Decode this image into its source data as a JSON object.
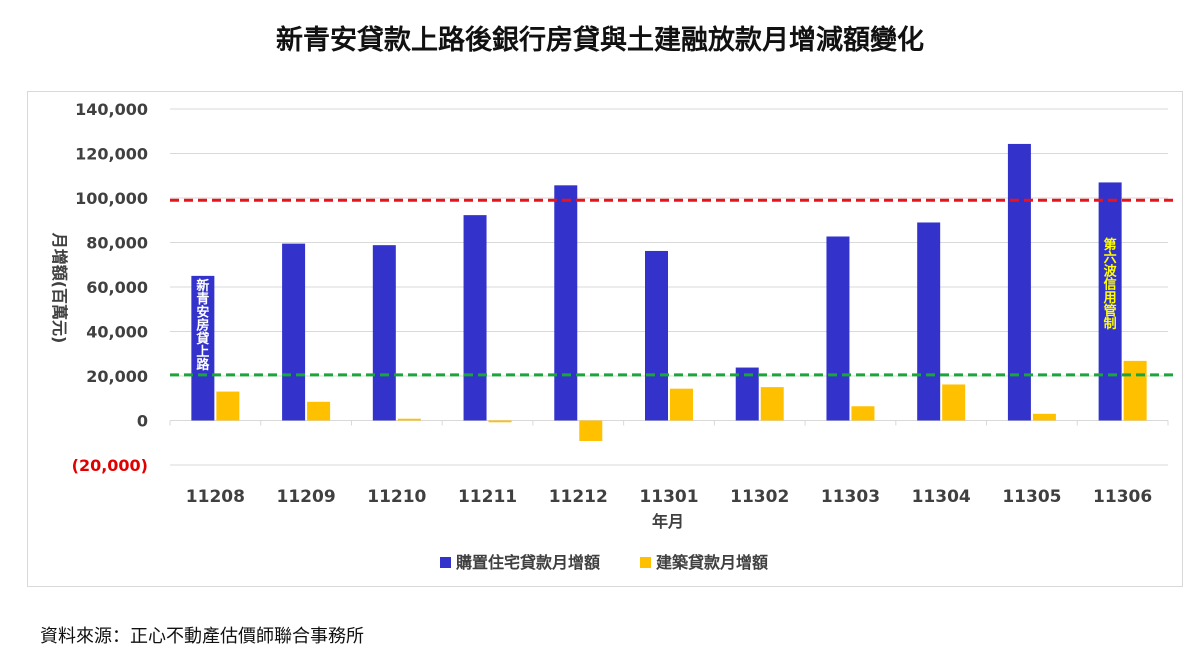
{
  "title": "新青安貸款上路後銀行房貸與土建融放款月增減額變化",
  "source": "資料來源：正心不動產估價師聯合事務所",
  "colors": {
    "series_housing": "#3333cc",
    "series_construction": "#ffc000",
    "ref_high": "#e8141c",
    "ref_low": "#1aa63a",
    "grid": "#d9d9d9",
    "negative_tick": "#e00000",
    "annotation_left_text": "#ffffff",
    "annotation_right_text": "#ffff00"
  },
  "chart_data": {
    "type": "bar",
    "title": "新青安貸款上路後銀行房貸與土建融放款月增減額變化",
    "xlabel": "年月",
    "ylabel": "月增額(百萬元)",
    "ylim": [
      -20000,
      140000
    ],
    "yticks": [
      {
        "value": 140000,
        "label": "140,000"
      },
      {
        "value": 120000,
        "label": "120,000"
      },
      {
        "value": 100000,
        "label": "100,000"
      },
      {
        "value": 80000,
        "label": "80,000"
      },
      {
        "value": 60000,
        "label": "60,000"
      },
      {
        "value": 40000,
        "label": "40,000"
      },
      {
        "value": 20000,
        "label": "20,000"
      },
      {
        "value": 0,
        "label": "0"
      },
      {
        "value": -20000,
        "label": "(20,000)"
      }
    ],
    "grid": true,
    "legend_position": "bottom",
    "categories": [
      "11208",
      "11209",
      "11210",
      "11211",
      "11212",
      "11301",
      "11302",
      "11303",
      "11304",
      "11305",
      "11306"
    ],
    "series": [
      {
        "name": "購置住宅貸款月增額",
        "values": [
          65000,
          79500,
          78800,
          92300,
          105700,
          76200,
          23800,
          82700,
          89000,
          124300,
          107000
        ]
      },
      {
        "name": "建築貸款月增額",
        "values": [
          13000,
          8400,
          800,
          -800,
          -9200,
          14300,
          15000,
          6400,
          16200,
          3000,
          26800
        ]
      }
    ],
    "reference_lines": [
      {
        "value": 99000,
        "style": "dashed",
        "color": "red"
      },
      {
        "value": 20500,
        "style": "dashed",
        "color": "green"
      }
    ],
    "annotations": [
      {
        "category": "11208",
        "text": "新青安房貸上路"
      },
      {
        "category": "11306",
        "text": "第六波信用管制"
      }
    ]
  }
}
